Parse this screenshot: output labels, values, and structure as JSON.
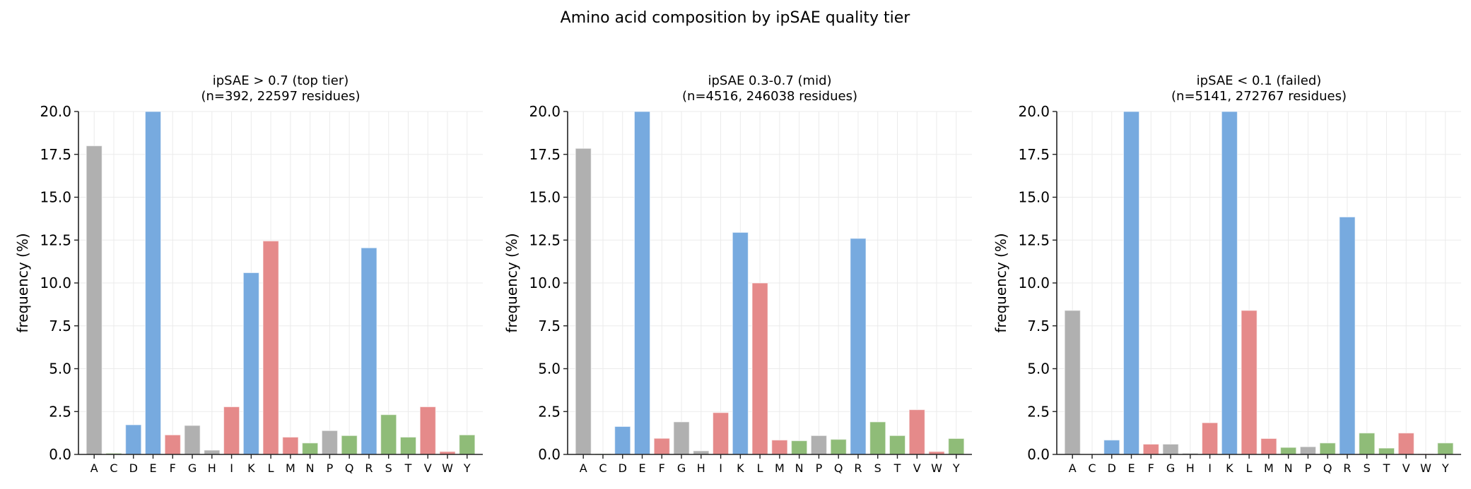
{
  "suptitle": "Amino acid composition by ipSAE quality tier",
  "chart_data": [
    {
      "type": "bar",
      "title": "ipSAE > 0.7 (top tier)\n(n=392, 22597 residues)",
      "title_lines": [
        "ipSAE > 0.7 (top tier)",
        "(n=392, 22597 residues)"
      ],
      "xlabel": "",
      "ylabel": "frequency (%)",
      "ylim": [
        0,
        20
      ],
      "yticks": [
        "0.0",
        "2.5",
        "5.0",
        "7.5",
        "10.0",
        "12.5",
        "15.0",
        "17.5",
        "20.0"
      ],
      "grid": true,
      "categories": [
        "A",
        "C",
        "D",
        "E",
        "F",
        "G",
        "H",
        "I",
        "K",
        "L",
        "M",
        "N",
        "P",
        "Q",
        "R",
        "S",
        "T",
        "V",
        "W",
        "Y"
      ],
      "values": [
        18.0,
        0.07,
        1.73,
        20.0,
        1.14,
        1.69,
        0.25,
        2.78,
        10.6,
        12.45,
        1.01,
        0.67,
        1.39,
        1.1,
        12.05,
        2.32,
        1.01,
        2.78,
        0.17,
        1.14
      ]
    },
    {
      "type": "bar",
      "title": "ipSAE 0.3-0.7 (mid)\n(n=4516, 246038 residues)",
      "title_lines": [
        "ipSAE 0.3-0.7 (mid)",
        "(n=4516, 246038 residues)"
      ],
      "xlabel": "",
      "ylabel": "frequency (%)",
      "ylim": [
        0,
        20
      ],
      "yticks": [
        "0.0",
        "2.5",
        "5.0",
        "7.5",
        "10.0",
        "12.5",
        "15.0",
        "17.5",
        "20.0"
      ],
      "grid": true,
      "categories": [
        "A",
        "C",
        "D",
        "E",
        "F",
        "G",
        "H",
        "I",
        "K",
        "L",
        "M",
        "N",
        "P",
        "Q",
        "R",
        "S",
        "T",
        "V",
        "W",
        "Y"
      ],
      "values": [
        17.85,
        0.04,
        1.63,
        20.0,
        0.94,
        1.9,
        0.21,
        2.44,
        12.95,
        10.0,
        0.84,
        0.8,
        1.1,
        0.88,
        12.6,
        1.9,
        1.1,
        2.61,
        0.17,
        0.93
      ]
    },
    {
      "type": "bar",
      "title": "ipSAE < 0.1 (failed)\n(n=5141, 272767 residues)",
      "title_lines": [
        "ipSAE < 0.1 (failed)",
        "(n=5141, 272767 residues)"
      ],
      "xlabel": "",
      "ylabel": "frequency (%)",
      "ylim": [
        0,
        20
      ],
      "yticks": [
        "0.0",
        "2.5",
        "5.0",
        "7.5",
        "10.0",
        "12.5",
        "15.0",
        "17.5",
        "20.0"
      ],
      "grid": true,
      "categories": [
        "A",
        "C",
        "D",
        "E",
        "F",
        "G",
        "H",
        "I",
        "K",
        "L",
        "M",
        "N",
        "P",
        "Q",
        "R",
        "S",
        "T",
        "V",
        "W",
        "Y"
      ],
      "values": [
        8.4,
        0.0,
        0.84,
        20.0,
        0.6,
        0.6,
        0.07,
        1.85,
        20.0,
        8.4,
        0.93,
        0.41,
        0.45,
        0.67,
        13.85,
        1.25,
        0.37,
        1.25,
        0.04,
        0.67
      ]
    }
  ],
  "colors": {
    "grey": "#b0b0b0",
    "blue": "#77aadf",
    "red": "#e58a8a",
    "green": "#8fbc78"
  },
  "residue_color_groups": {
    "grey": [
      "A",
      "G",
      "H",
      "P"
    ],
    "blue": [
      "D",
      "E",
      "K",
      "R"
    ],
    "red": [
      "F",
      "I",
      "L",
      "M",
      "V",
      "W"
    ],
    "green": [
      "C",
      "N",
      "Q",
      "S",
      "T",
      "Y"
    ]
  }
}
